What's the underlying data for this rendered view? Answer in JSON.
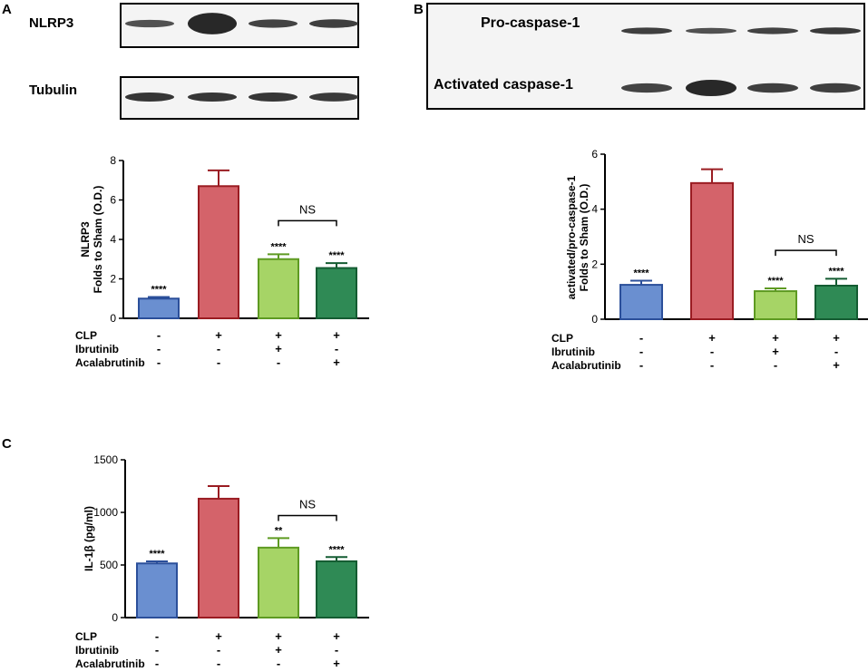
{
  "panels": [
    {
      "letter": "A"
    },
    {
      "letter": "B"
    },
    {
      "letter": "C"
    }
  ],
  "blots": {
    "A": {
      "rows": [
        {
          "label": "NLRP3",
          "intensities": [
            0.55,
            1.0,
            0.7,
            0.75
          ]
        },
        {
          "label": "Tubulin",
          "intensities": [
            0.85,
            0.85,
            0.85,
            0.8
          ]
        }
      ]
    },
    "B": {
      "rows": [
        {
          "label": "Pro-caspase-1",
          "intensities": [
            0.75,
            0.55,
            0.7,
            0.8
          ]
        },
        {
          "label": "Activated caspase-1",
          "intensities": [
            0.7,
            1.0,
            0.75,
            0.75
          ]
        }
      ]
    }
  },
  "colors": {
    "sham": "#6a8fd0",
    "sham_edge": "#2b4f9a",
    "clp": "#d4636a",
    "clp_edge": "#9a1c22",
    "ibrutinib": "#a6d466",
    "ibrutinib_edge": "#5e9a22",
    "acalabrutinib": "#2f8a55",
    "acalabrutinib_edge": "#145c32"
  },
  "treatment_rows": [
    {
      "label": "CLP",
      "signs": [
        "-",
        "+",
        "+",
        "+"
      ]
    },
    {
      "label": "Ibrutinib",
      "signs": [
        "-",
        "-",
        "+",
        "-"
      ]
    },
    {
      "label": "Acalabrutinib",
      "signs": [
        "-",
        "-",
        "-",
        "+"
      ]
    }
  ],
  "chart_data": [
    {
      "type": "bar",
      "panel": "A",
      "ylabel_lines": [
        "NLRP3",
        "Folds to Sham (O.D.)"
      ],
      "ylim": [
        0,
        8
      ],
      "yticks": [
        "0",
        "2",
        "4",
        "6",
        "8"
      ],
      "values": [
        1.0,
        6.7,
        3.0,
        2.55
      ],
      "errors": [
        0.08,
        0.8,
        0.25,
        0.25
      ],
      "significance": [
        "****",
        "",
        "****",
        "****"
      ],
      "comparison": {
        "from": 2,
        "to": 3,
        "label": "NS",
        "y": 4.95
      }
    },
    {
      "type": "bar",
      "panel": "B",
      "ylabel_lines": [
        "activated/pro-caspase-1",
        "Folds to Sham (O.D.)"
      ],
      "ylim": [
        0,
        6
      ],
      "yticks": [
        "0",
        "2",
        "4",
        "6"
      ],
      "values": [
        1.25,
        4.95,
        1.02,
        1.22
      ],
      "errors": [
        0.15,
        0.5,
        0.1,
        0.25
      ],
      "significance": [
        "****",
        "",
        "****",
        "****"
      ],
      "comparison": {
        "from": 2,
        "to": 3,
        "label": "NS",
        "y": 2.5
      }
    },
    {
      "type": "bar",
      "panel": "C",
      "ylabel_lines": [
        "IL-1β (pg/ml)"
      ],
      "ylim": [
        0,
        1500
      ],
      "yticks": [
        "0",
        "500",
        "1000",
        "1500"
      ],
      "values": [
        515,
        1130,
        665,
        535
      ],
      "errors": [
        20,
        120,
        90,
        40
      ],
      "significance": [
        "****",
        "",
        "**",
        "****"
      ],
      "comparison": {
        "from": 2,
        "to": 3,
        "label": "NS",
        "y": 970
      }
    }
  ]
}
